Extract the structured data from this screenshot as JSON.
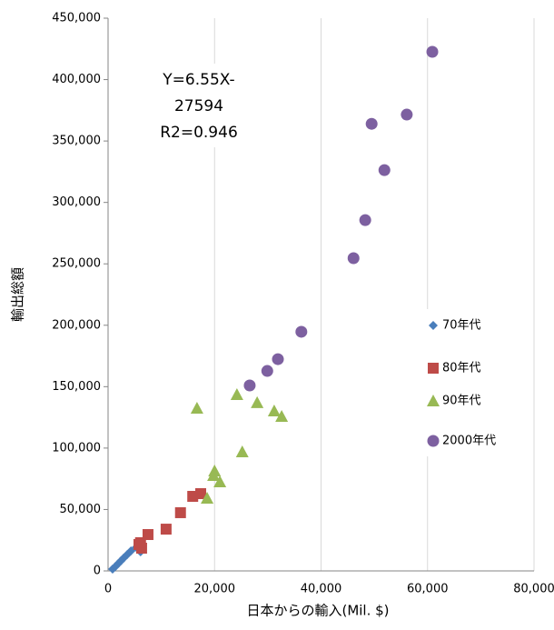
{
  "chart_data": {
    "type": "scatter",
    "xlabel": "日本からの輸入(Mil. $)",
    "ylabel": "輸出総額",
    "annotation": [
      "Y=6.55X-",
      "27594",
      "R2=0.946"
    ],
    "xlim": [
      0,
      80000
    ],
    "ylim": [
      0,
      450000
    ],
    "xticks": [
      0,
      {
        "value": 20000,
        "label": "20,000"
      },
      {
        "value": 40000,
        "label": "40,000"
      },
      {
        "value": 60000,
        "label": "60,000"
      },
      {
        "value": 80000,
        "label": "80,000"
      }
    ],
    "yticks": [
      0,
      {
        "value": 50000,
        "label": "50,000"
      },
      {
        "value": 100000,
        "label": "100,000"
      },
      {
        "value": 150000,
        "label": "150,000"
      },
      {
        "value": 200000,
        "label": "200,000"
      },
      {
        "value": 250000,
        "label": "250,000"
      },
      {
        "value": 300000,
        "label": "300,000"
      },
      {
        "value": 350000,
        "label": "350,000"
      },
      {
        "value": 400000,
        "label": "400,000"
      },
      {
        "value": 450000,
        "label": "450,000"
      }
    ],
    "grid": "x",
    "legend": "right",
    "series": [
      {
        "name": "70年代",
        "color": "#4a7ebb",
        "marker": "diamond",
        "x": [
          850,
          1400,
          1900,
          2400,
          2900,
          3600,
          4300,
          5300,
          6100
        ],
        "values": [
          1500,
          3700,
          5900,
          8100,
          10400,
          13300,
          16300,
          19200,
          15500
        ]
      },
      {
        "name": "80年代",
        "color": "#be4b48",
        "marker": "square",
        "x": [
          5800,
          6300,
          6100,
          7500,
          10900,
          13600,
          15900,
          17400
        ],
        "values": [
          21500,
          18500,
          23000,
          29600,
          34000,
          47400,
          60700,
          62900
        ]
      },
      {
        "name": "90年代",
        "color": "#98b954",
        "marker": "triangle",
        "x": [
          16700,
          18600,
          19800,
          20000,
          21000,
          24200,
          25200,
          28000,
          31200,
          32600
        ],
        "values": [
          132500,
          59200,
          77700,
          81400,
          72500,
          143600,
          97000,
          137000,
          130300,
          125800
        ]
      },
      {
        "name": "2000年代",
        "color": "#7d60a0",
        "marker": "circle",
        "x": [
          26600,
          29900,
          31900,
          36300,
          46100,
          48300,
          49500,
          51900,
          56100,
          60900
        ],
        "values": [
          151000,
          162800,
          172400,
          194700,
          254600,
          285600,
          364000,
          326300,
          371500,
          422600
        ]
      }
    ]
  }
}
